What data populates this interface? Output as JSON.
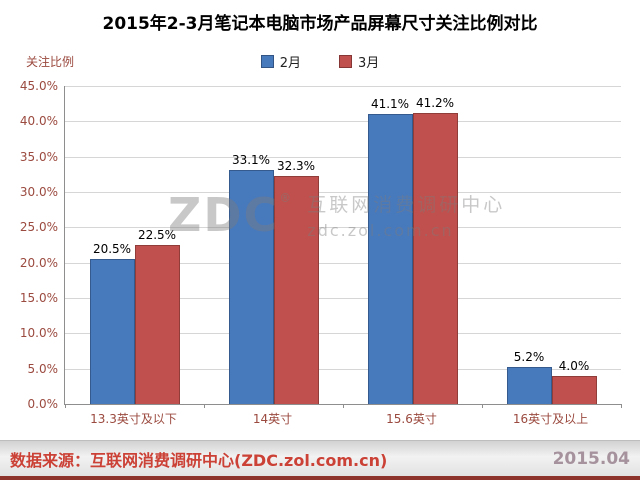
{
  "title": "2015年2-3月笔记本电脑市场产品屏幕尺寸关注比例对比",
  "chart_data": {
    "type": "bar",
    "title": "2015年2-3月笔记本电脑市场产品屏幕尺寸关注比例对比",
    "ylabel": "关注比例",
    "xlabel": "",
    "categories": [
      "13.3英寸及以下",
      "14英寸",
      "15.6英寸",
      "16英寸及以上"
    ],
    "series": [
      {
        "name": "2月",
        "color": "#4779bd",
        "values": [
          20.5,
          33.1,
          41.1,
          5.2
        ]
      },
      {
        "name": "3月",
        "color": "#c0504d",
        "values": [
          22.5,
          32.3,
          41.2,
          4.0
        ]
      }
    ],
    "ylim": [
      0,
      45
    ],
    "ytick_step": 5,
    "value_suffix": "%",
    "grid": true,
    "legend_position": "top"
  },
  "watermark": {
    "zdc": "ZDC",
    "reg": "®",
    "line1": "互联网消费调研中心",
    "line2": "zdc.zol.com.cn"
  },
  "footer": {
    "source": "数据来源：互联网消费调研中心(ZDC.zol.com.cn)",
    "date": "2015.04"
  }
}
